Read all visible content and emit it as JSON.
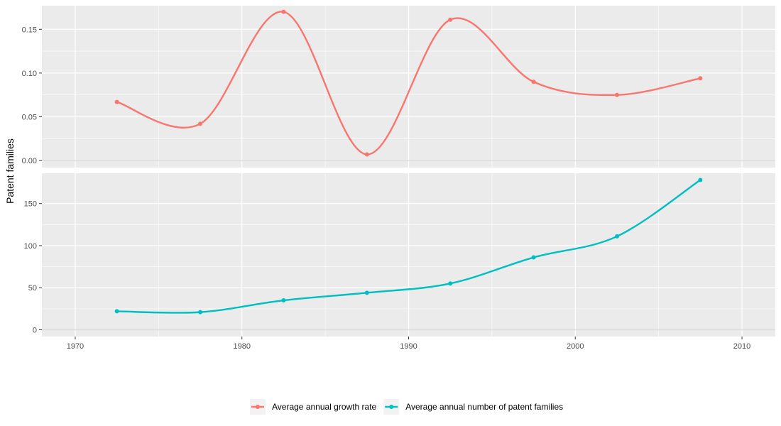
{
  "chart_data": {
    "type": "line",
    "ylabel": "Patent families",
    "x_ticks": [
      1970,
      1980,
      1990,
      2000,
      2010
    ],
    "xlim": [
      1968,
      2012
    ],
    "legend_position": "bottom",
    "panels": [
      {
        "series": {
          "name": "Average annual growth rate",
          "color": "#F8766D",
          "x": [
            1972.5,
            1977.5,
            1982.5,
            1987.5,
            1992.5,
            1997.5,
            2002.5,
            2007.5
          ],
          "y": [
            0.067,
            0.042,
            0.17,
            0.007,
            0.161,
            0.09,
            0.075,
            0.094
          ]
        },
        "ylim": [
          -0.008,
          0.177
        ],
        "y_ticks": [
          0.0,
          0.05,
          0.1,
          0.15
        ],
        "y_tick_labels": [
          "0.00",
          "0.05",
          "0.10",
          "0.15"
        ]
      },
      {
        "series": {
          "name": "Average annual number of patent families",
          "color": "#00BFC4",
          "x": [
            1972.5,
            1977.5,
            1982.5,
            1987.5,
            1992.5,
            1997.5,
            2002.5,
            2007.5
          ],
          "y": [
            22,
            21,
            35,
            44,
            55,
            86,
            111,
            178
          ]
        },
        "ylim": [
          -8,
          186
        ],
        "y_ticks": [
          0,
          50,
          100,
          150
        ],
        "y_tick_labels": [
          "0",
          "50",
          "100",
          "150"
        ]
      }
    ]
  }
}
